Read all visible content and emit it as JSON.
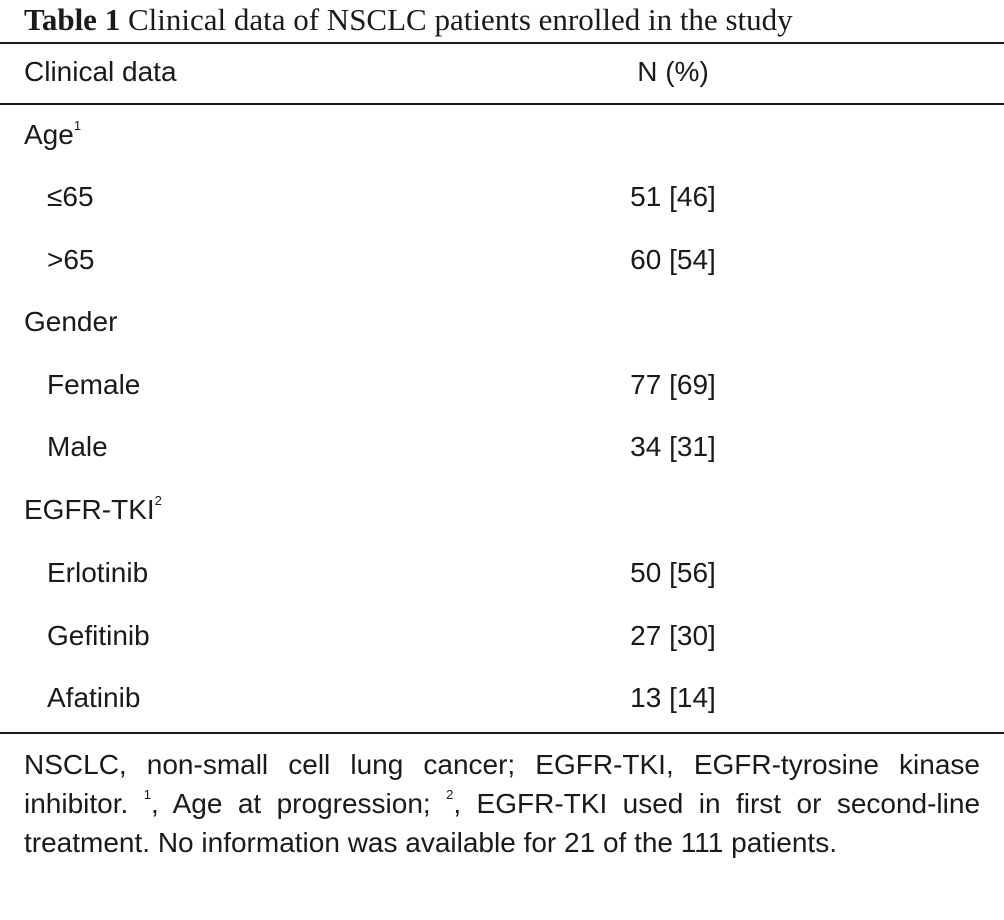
{
  "caption": {
    "label": "Table 1",
    "text": "Clinical data of NSCLC patients enrolled in the study"
  },
  "header": {
    "col1": "Clinical data",
    "col2": "N (%)"
  },
  "rows": [
    {
      "label": "Age",
      "sup": "1",
      "value": ""
    },
    {
      "label": "≤65",
      "sup": "",
      "value": "51 [46]"
    },
    {
      "label": ">65",
      "sup": "",
      "value": "60 [54]"
    },
    {
      "label": "Gender",
      "sup": "",
      "value": ""
    },
    {
      "label": "Female",
      "sup": "",
      "value": "77 [69]"
    },
    {
      "label": "Male",
      "sup": "",
      "value": "34 [31]"
    },
    {
      "label": "EGFR-TKI",
      "sup": "2",
      "value": ""
    },
    {
      "label": "Erlotinib",
      "sup": "",
      "value": "50 [56]"
    },
    {
      "label": "Gefitinib",
      "sup": "",
      "value": "27 [30]"
    },
    {
      "label": "Afatinib",
      "sup": "",
      "value": "13 [14]"
    }
  ],
  "footnote": {
    "part1": "NSCLC, non-small cell lung cancer; EGFR-TKI, EGFR-tyrosine kinase inhibitor. ",
    "sup1": "1",
    "part2": ", Age at progression; ",
    "sup2": "2",
    "part3": ", EGFR-TKI used in first or second-line treatment. No information was available for 21 of the 111 patients."
  }
}
